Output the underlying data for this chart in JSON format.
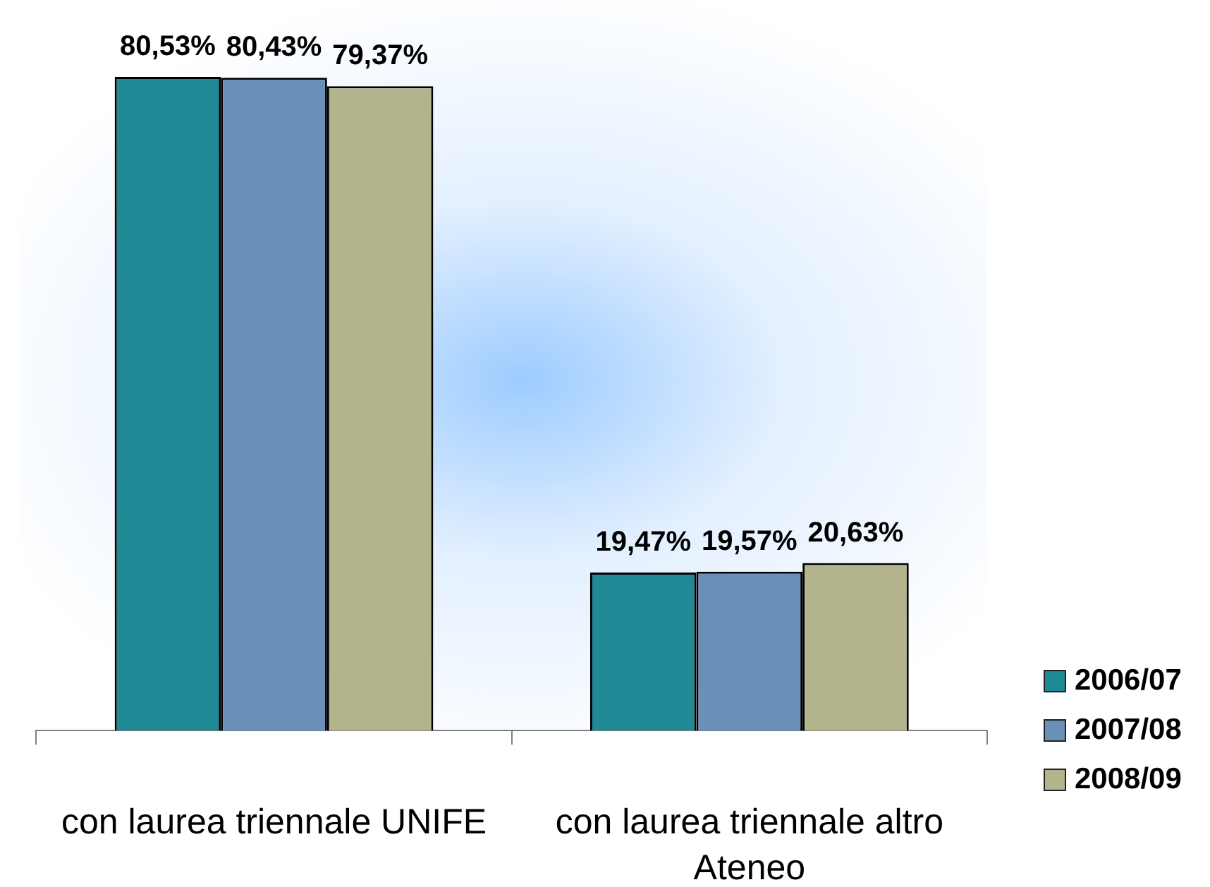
{
  "chart_data": {
    "type": "bar",
    "categories": [
      "con laurea triennale UNIFE",
      "con laurea triennale altro Ateneo"
    ],
    "series": [
      {
        "name": "2006/07",
        "color": "#1f8a96",
        "values": [
          80.53,
          19.47
        ],
        "value_labels": [
          "80,53%",
          "19,47%"
        ]
      },
      {
        "name": "2007/08",
        "color": "#6a8fb8",
        "values": [
          80.43,
          19.57
        ],
        "value_labels": [
          "80,43%",
          "19,57%"
        ]
      },
      {
        "name": "2008/09",
        "color": "#b4b48c",
        "values": [
          79.37,
          20.63
        ],
        "value_labels": [
          "79,37%",
          "20,63%"
        ]
      }
    ],
    "legend": "right"
  }
}
